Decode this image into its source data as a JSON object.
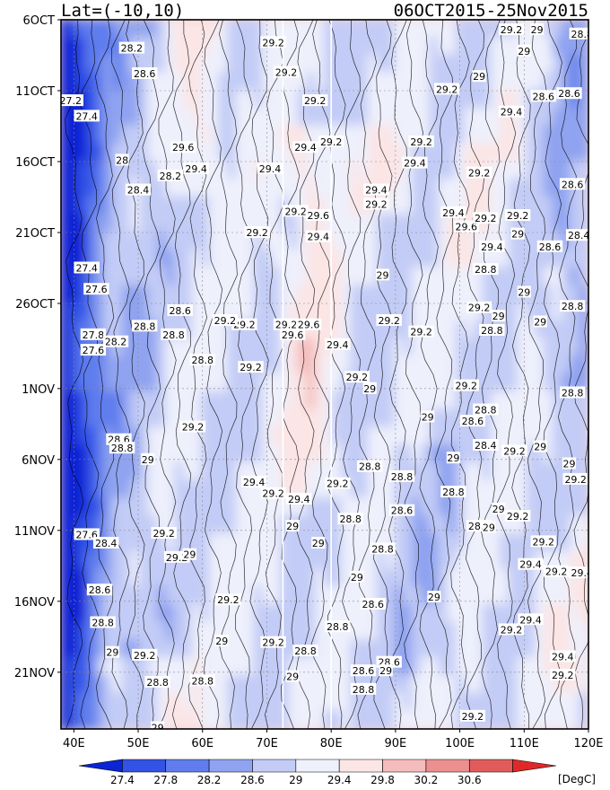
{
  "chart_data": {
    "type": "heatmap",
    "title_left": "Lat=(-10,10)",
    "title_right": "06OCT2015-25Nov2015",
    "xlabel": "",
    "ylabel": "",
    "x_ticks": [
      "40E",
      "50E",
      "60E",
      "70E",
      "80E",
      "90E",
      "100E",
      "110E",
      "120E"
    ],
    "x_tick_values": [
      40,
      50,
      60,
      70,
      80,
      90,
      100,
      110,
      120
    ],
    "xlim": [
      38,
      120
    ],
    "y_ticks": [
      "6OCT",
      "11OCT",
      "16OCT",
      "21OCT",
      "26OCT",
      "1NOV",
      "6NOV",
      "11NOV",
      "16NOV",
      "21NOV"
    ],
    "y_tick_values": [
      0,
      5,
      10,
      15,
      20,
      26,
      31,
      36,
      41,
      46
    ],
    "ylim_days": [
      0,
      50
    ],
    "colorbar": {
      "levels": [
        "27.4",
        "27.8",
        "28.2",
        "28.6",
        "29",
        "29.4",
        "29.8",
        "30.2",
        "30.6"
      ],
      "colors": [
        "#0a24d6",
        "#3352e6",
        "#5f7ded",
        "#8fa3f0",
        "#c3ccf6",
        "#eef0fc",
        "#fbe5e5",
        "#f4bcbc",
        "#ec8f8f",
        "#e25b5b",
        "#e02828"
      ],
      "unit": "[DegC]"
    },
    "contour_labels": [
      {
        "t": "28.2",
        "lon": 49,
        "day": 2
      },
      {
        "t": "28.6",
        "lon": 51,
        "day": 3.8
      },
      {
        "t": "27.2",
        "lon": 39.5,
        "day": 5.7
      },
      {
        "t": "27.4",
        "lon": 42,
        "day": 6.8
      },
      {
        "t": "28",
        "lon": 47.5,
        "day": 9.9
      },
      {
        "t": "28.4",
        "lon": 50,
        "day": 12
      },
      {
        "t": "28.2",
        "lon": 55,
        "day": 11
      },
      {
        "t": "29.4",
        "lon": 59,
        "day": 10.5
      },
      {
        "t": "29.6",
        "lon": 57,
        "day": 9
      },
      {
        "t": "29.2",
        "lon": 71,
        "day": 1.6
      },
      {
        "t": "29.2",
        "lon": 73,
        "day": 3.7
      },
      {
        "t": "29.2",
        "lon": 77.5,
        "day": 5.7
      },
      {
        "t": "29.4",
        "lon": 76,
        "day": 9
      },
      {
        "t": "29.2",
        "lon": 80,
        "day": 8.6
      },
      {
        "t": "29.4",
        "lon": 70.5,
        "day": 10.5
      },
      {
        "t": "29.4",
        "lon": 87,
        "day": 12
      },
      {
        "t": "29.2",
        "lon": 87,
        "day": 13
      },
      {
        "t": "29.2",
        "lon": 74.5,
        "day": 13.5
      },
      {
        "t": "29.6",
        "lon": 78,
        "day": 13.8
      },
      {
        "t": "29.4",
        "lon": 78,
        "day": 15.3
      },
      {
        "t": "29.2",
        "lon": 68.5,
        "day": 15
      },
      {
        "t": "29.2",
        "lon": 94,
        "day": 8.6
      },
      {
        "t": "29.4",
        "lon": 93,
        "day": 10.1
      },
      {
        "t": "29.2",
        "lon": 103,
        "day": 10.8
      },
      {
        "t": "29.4",
        "lon": 99,
        "day": 13.6
      },
      {
        "t": "29.6",
        "lon": 101,
        "day": 14.6
      },
      {
        "t": "29.2",
        "lon": 104,
        "day": 14
      },
      {
        "t": "29.2",
        "lon": 109,
        "day": 13.8
      },
      {
        "t": "29.4",
        "lon": 105,
        "day": 16
      },
      {
        "t": "29",
        "lon": 109,
        "day": 15.1
      },
      {
        "t": "28.6",
        "lon": 114,
        "day": 16
      },
      {
        "t": "28.4",
        "lon": 118.5,
        "day": 15.2
      },
      {
        "t": "28.6",
        "lon": 117.5,
        "day": 11.6
      },
      {
        "t": "29.2",
        "lon": 108,
        "day": 0.7
      },
      {
        "t": "29",
        "lon": 112,
        "day": 0.7
      },
      {
        "t": "28.8",
        "lon": 119,
        "day": 1
      },
      {
        "t": "29",
        "lon": 110,
        "day": 2.2
      },
      {
        "t": "29.2",
        "lon": 98,
        "day": 4.9
      },
      {
        "t": "29",
        "lon": 103,
        "day": 4
      },
      {
        "t": "29.4",
        "lon": 108,
        "day": 6.5
      },
      {
        "t": "28.6",
        "lon": 113,
        "day": 5.4
      },
      {
        "t": "28.6",
        "lon": 117,
        "day": 5.2
      },
      {
        "t": "27.4",
        "lon": 42,
        "day": 17.5
      },
      {
        "t": "27.6",
        "lon": 43.5,
        "day": 19
      },
      {
        "t": "28.6",
        "lon": 56.5,
        "day": 20.5
      },
      {
        "t": "28.8",
        "lon": 51,
        "day": 21.6
      },
      {
        "t": "28.8",
        "lon": 55.5,
        "day": 22.2
      },
      {
        "t": "27.8",
        "lon": 43,
        "day": 22.2
      },
      {
        "t": "28.2",
        "lon": 46.5,
        "day": 22.7
      },
      {
        "t": "27.6",
        "lon": 43,
        "day": 23.3
      },
      {
        "t": "28.8",
        "lon": 60,
        "day": 24
      },
      {
        "t": "29.2",
        "lon": 66.5,
        "day": 21.5
      },
      {
        "t": "29.2",
        "lon": 63.5,
        "day": 21.2
      },
      {
        "t": "29.2",
        "lon": 73,
        "day": 21.5
      },
      {
        "t": "29.6",
        "lon": 76.5,
        "day": 21.5
      },
      {
        "t": "29.6",
        "lon": 74,
        "day": 22.2
      },
      {
        "t": "29.2",
        "lon": 67.5,
        "day": 24.5
      },
      {
        "t": "29.4",
        "lon": 81,
        "day": 22.9
      },
      {
        "t": "29",
        "lon": 88,
        "day": 18
      },
      {
        "t": "29.2",
        "lon": 89,
        "day": 21.2
      },
      {
        "t": "29.2",
        "lon": 94,
        "day": 22
      },
      {
        "t": "28.8",
        "lon": 104,
        "day": 17.6
      },
      {
        "t": "29",
        "lon": 110,
        "day": 19.2
      },
      {
        "t": "29.2",
        "lon": 103,
        "day": 20.3
      },
      {
        "t": "29",
        "lon": 106,
        "day": 20.9
      },
      {
        "t": "28.8",
        "lon": 117.5,
        "day": 20.2
      },
      {
        "t": "29",
        "lon": 112.5,
        "day": 21.3
      },
      {
        "t": "28.8",
        "lon": 105,
        "day": 21.9
      },
      {
        "t": "29.2",
        "lon": 84,
        "day": 25.2
      },
      {
        "t": "29",
        "lon": 86,
        "day": 26
      },
      {
        "t": "29.2",
        "lon": 101,
        "day": 25.8
      },
      {
        "t": "28.8",
        "lon": 117.5,
        "day": 26.3
      },
      {
        "t": "29.2",
        "lon": 58.5,
        "day": 28.7
      },
      {
        "t": "28.6",
        "lon": 47,
        "day": 29.6
      },
      {
        "t": "28.8",
        "lon": 47.5,
        "day": 30.2
      },
      {
        "t": "29",
        "lon": 51.5,
        "day": 31
      },
      {
        "t": "28.8",
        "lon": 86,
        "day": 31.5
      },
      {
        "t": "28.8",
        "lon": 91,
        "day": 32.2
      },
      {
        "t": "29",
        "lon": 95,
        "day": 28
      },
      {
        "t": "28.6",
        "lon": 102,
        "day": 28.3
      },
      {
        "t": "28.4",
        "lon": 104,
        "day": 30
      },
      {
        "t": "28.8",
        "lon": 104,
        "day": 27.5
      },
      {
        "t": "29.2",
        "lon": 108.5,
        "day": 30.4
      },
      {
        "t": "29",
        "lon": 112.5,
        "day": 30.1
      },
      {
        "t": "29",
        "lon": 117,
        "day": 31.3
      },
      {
        "t": "29.2",
        "lon": 118,
        "day": 32.4
      },
      {
        "t": "29",
        "lon": 99,
        "day": 30.9
      },
      {
        "t": "29.4",
        "lon": 68,
        "day": 32.6
      },
      {
        "t": "29.2",
        "lon": 71,
        "day": 33.4
      },
      {
        "t": "29.4",
        "lon": 75,
        "day": 33.8
      },
      {
        "t": "29.2",
        "lon": 81,
        "day": 32.7
      },
      {
        "t": "28.8",
        "lon": 99,
        "day": 33.3
      },
      {
        "t": "28.6",
        "lon": 91,
        "day": 34.6
      },
      {
        "t": "29",
        "lon": 106,
        "day": 34.5
      },
      {
        "t": "29.2",
        "lon": 109,
        "day": 35
      },
      {
        "t": "29",
        "lon": 74,
        "day": 35.7
      },
      {
        "t": "28.8",
        "lon": 83,
        "day": 35.2
      },
      {
        "t": "28.6",
        "lon": 103,
        "day": 35.7
      },
      {
        "t": "29",
        "lon": 104.5,
        "day": 35.8
      },
      {
        "t": "27.6",
        "lon": 42,
        "day": 36.3
      },
      {
        "t": "28.4",
        "lon": 45,
        "day": 36.9
      },
      {
        "t": "29.2",
        "lon": 54,
        "day": 36.2
      },
      {
        "t": "29.2",
        "lon": 56,
        "day": 37.9
      },
      {
        "t": "29",
        "lon": 58,
        "day": 37.7
      },
      {
        "t": "29",
        "lon": 78,
        "day": 36.9
      },
      {
        "t": "28.8",
        "lon": 88,
        "day": 37.3
      },
      {
        "t": "29.2",
        "lon": 113,
        "day": 36.8
      },
      {
        "t": "29.4",
        "lon": 111,
        "day": 38.4
      },
      {
        "t": "29.2",
        "lon": 115,
        "day": 38.9
      },
      {
        "t": "29.4",
        "lon": 119,
        "day": 39
      },
      {
        "t": "28.6",
        "lon": 44,
        "day": 40.2
      },
      {
        "t": "29",
        "lon": 84,
        "day": 39.3
      },
      {
        "t": "29",
        "lon": 96,
        "day": 40.7
      },
      {
        "t": "28.6",
        "lon": 86.5,
        "day": 41.2
      },
      {
        "t": "29.2",
        "lon": 64,
        "day": 40.9
      },
      {
        "t": "28.8",
        "lon": 44.5,
        "day": 42.5
      },
      {
        "t": "28.8",
        "lon": 81,
        "day": 42.8
      },
      {
        "t": "29.4",
        "lon": 111,
        "day": 42.3
      },
      {
        "t": "29.2",
        "lon": 108,
        "day": 43
      },
      {
        "t": "29",
        "lon": 63,
        "day": 43.8
      },
      {
        "t": "29.2",
        "lon": 71,
        "day": 43.9
      },
      {
        "t": "28.8",
        "lon": 76,
        "day": 44.5
      },
      {
        "t": "29",
        "lon": 46,
        "day": 44.6
      },
      {
        "t": "29.2",
        "lon": 51,
        "day": 44.8
      },
      {
        "t": "29.4",
        "lon": 116,
        "day": 44.9
      },
      {
        "t": "28.6",
        "lon": 89,
        "day": 45.3
      },
      {
        "t": "28.6",
        "lon": 85,
        "day": 45.9
      },
      {
        "t": "29",
        "lon": 88.5,
        "day": 45.9
      },
      {
        "t": "29",
        "lon": 74,
        "day": 46.3
      },
      {
        "t": "29.2",
        "lon": 116,
        "day": 46.2
      },
      {
        "t": "28.8",
        "lon": 53,
        "day": 46.7
      },
      {
        "t": "28.8",
        "lon": 60,
        "day": 46.6
      },
      {
        "t": "28.8",
        "lon": 85,
        "day": 47.2
      },
      {
        "t": "29.2",
        "lon": 102,
        "day": 49.1
      },
      {
        "t": "29",
        "lon": 53,
        "day": 49.9
      },
      {
        "t": "29",
        "lon": 73,
        "day": 50.5
      }
    ]
  }
}
